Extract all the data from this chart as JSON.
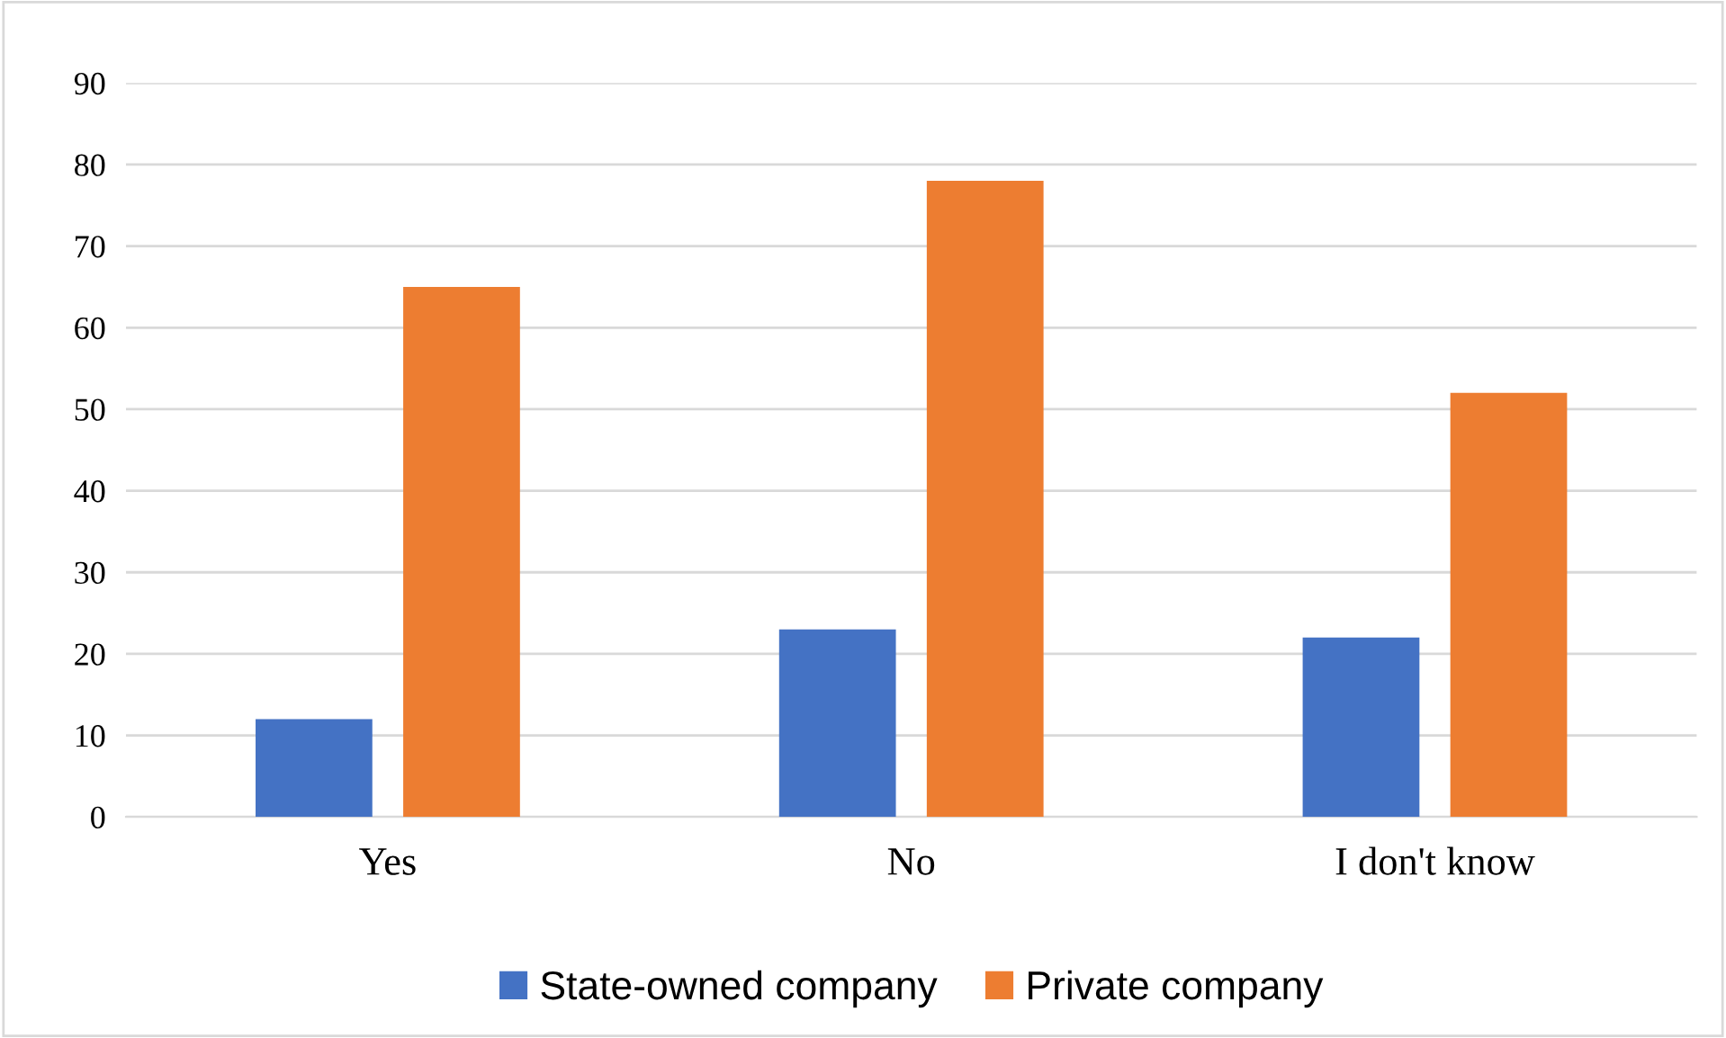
{
  "chart_data": {
    "type": "bar",
    "categories": [
      "Yes",
      "No",
      "I don't know"
    ],
    "series": [
      {
        "name": "State-owned company",
        "color": "#4472c4",
        "values": [
          12,
          23,
          22
        ]
      },
      {
        "name": "Private company",
        "color": "#ed7d31",
        "values": [
          65,
          78,
          52
        ]
      }
    ],
    "ylim": [
      0,
      90
    ],
    "yticks": [
      0,
      10,
      20,
      30,
      40,
      50,
      60,
      70,
      80,
      90
    ],
    "grid": "y",
    "legend": "bottom"
  }
}
